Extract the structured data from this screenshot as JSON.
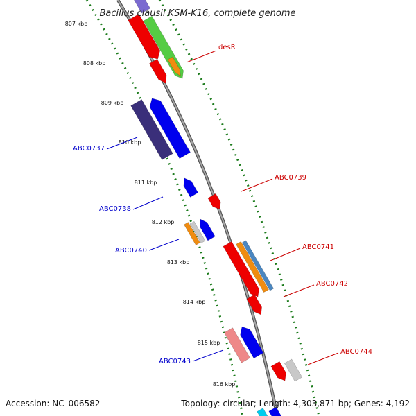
{
  "title": "Bacillus clausii KSM-K16, complete genome",
  "accession": "Accession: NC_006582",
  "topology": "Topology: circular; Length: 4,303,871 bp; Genes: 4,192",
  "ticks": [
    "807 kbp",
    "808 kbp",
    "809 kbp",
    "810 kbp",
    "811 kbp",
    "812 kbp",
    "813 kbp",
    "814 kbp",
    "815 kbp",
    "816 kbp"
  ],
  "labels": {
    "desR": "desR",
    "abc0737": "ABC0737",
    "abc0738": "ABC0738",
    "abc0739": "ABC0739",
    "abc0740": "ABC0740",
    "abc0741": "ABC0741",
    "abc0742": "ABC0742",
    "abc0743": "ABC0743",
    "abc0744": "ABC0744"
  },
  "colors": {
    "backbone": "#8a8a8a",
    "ticks": "#1a7a1a",
    "reverse_label": "#0000cc",
    "forward_label": "#cc0000",
    "red": "#ee0000",
    "blue": "#0000ee",
    "dark_blue": "#3a2f7a",
    "orange": "#f08c10",
    "gray": "#c8c8c8",
    "steel": "#4a86c0",
    "green": "#55cc44",
    "pink": "#ee8888",
    "cyan": "#00ccee"
  }
}
